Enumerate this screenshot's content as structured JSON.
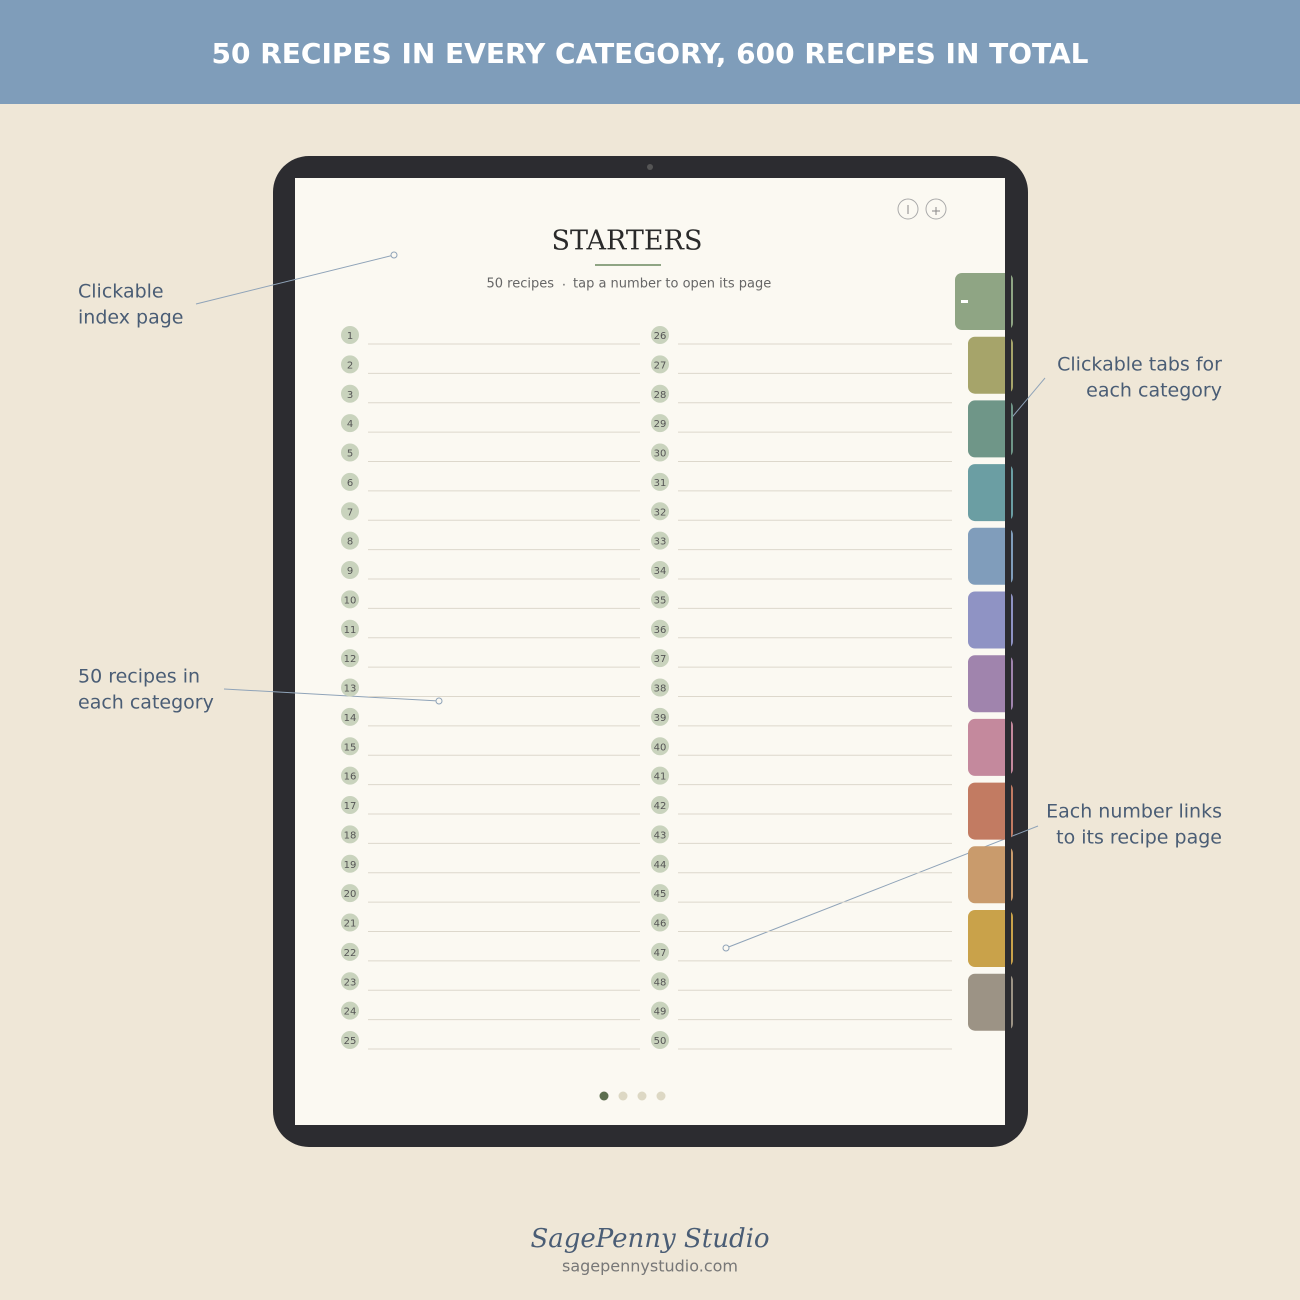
{
  "header": {
    "title": "50 RECIPES IN EVERY CATEGORY, 600 RECIPES IN TOTAL"
  },
  "screen": {
    "title": "STARTERS",
    "subtitle": "50 recipes",
    "separator": ".",
    "hint": "tap a number to open its page",
    "entries": [
      "1",
      "2",
      "3",
      "4",
      "5",
      "6",
      "7",
      "8",
      "9",
      "10",
      "11",
      "12",
      "13",
      "14",
      "15",
      "16",
      "17",
      "18",
      "19",
      "20",
      "21",
      "22",
      "23",
      "24",
      "25",
      "26",
      "27",
      "28",
      "29",
      "30",
      "31",
      "32",
      "33",
      "34",
      "35",
      "36",
      "37",
      "38",
      "39",
      "40",
      "41",
      "42",
      "43",
      "44",
      "45",
      "46",
      "47",
      "48",
      "49",
      "50"
    ],
    "tab_colors": [
      "#8fa584",
      "#a6a46a",
      "#6f9688",
      "#6b9ea3",
      "#809dbb",
      "#8f93c4",
      "#a084ad",
      "#c4899d",
      "#c27b62",
      "#c99b6c",
      "#c9a24a",
      "#9c9385"
    ]
  },
  "annotations": [
    {
      "lines": [
        "Clickable",
        "index page"
      ]
    },
    {
      "lines": [
        "Clickable tabs for",
        "each category"
      ]
    },
    {
      "lines": [
        "50 recipes in",
        "each category"
      ]
    },
    {
      "lines": [
        "Each number links",
        "to its recipe page"
      ]
    }
  ],
  "footer": {
    "brand": "SagePenny Studio",
    "url": "sagepennystudio.com"
  }
}
